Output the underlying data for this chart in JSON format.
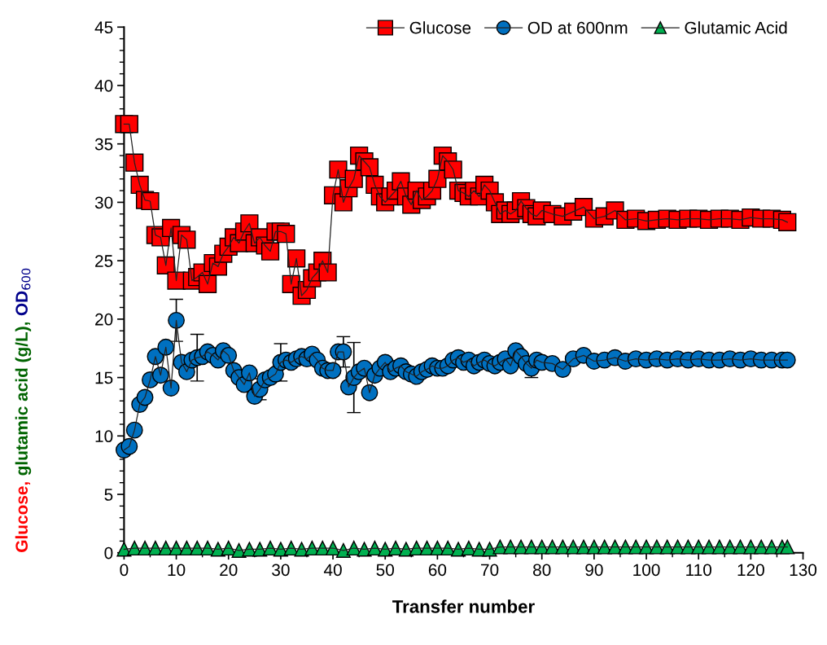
{
  "chart_data": {
    "type": "line",
    "xlabel": "Transfer number",
    "ylabel": "Glucose, glutamic acid (g/L), OD$_{600}$",
    "xlim": [
      0,
      130
    ],
    "xticks": [
      0,
      10,
      20,
      30,
      40,
      50,
      60,
      70,
      80,
      90,
      100,
      110,
      120,
      130
    ],
    "ylim": [
      0,
      45
    ],
    "yticks": [
      0,
      5,
      10,
      15,
      20,
      25,
      30,
      35,
      40,
      45
    ],
    "grid": false,
    "legend": "top right",
    "line_style": "solid",
    "series": [
      {
        "name": "Glucose",
        "color": "#ff0000",
        "marker": "square",
        "x": [
          0,
          1,
          2,
          3,
          4,
          5,
          6,
          7,
          8,
          9,
          10,
          11,
          12,
          13,
          14,
          15,
          16,
          17,
          18,
          19,
          20,
          21,
          22,
          23,
          24,
          25,
          26,
          27,
          28,
          29,
          30,
          31,
          32,
          33,
          34,
          35,
          36,
          37,
          38,
          39,
          40,
          41,
          42,
          43,
          44,
          45,
          46,
          47,
          48,
          49,
          50,
          51,
          52,
          53,
          54,
          55,
          56,
          57,
          58,
          59,
          60,
          61,
          62,
          63,
          64,
          65,
          66,
          67,
          68,
          69,
          70,
          71,
          72,
          73,
          74,
          75,
          76,
          77,
          78,
          79,
          80,
          82,
          84,
          86,
          88,
          90,
          92,
          94,
          96,
          98,
          100,
          102,
          104,
          106,
          108,
          110,
          112,
          114,
          116,
          118,
          120,
          122,
          124,
          126,
          127
        ],
        "values": [
          36.7,
          36.7,
          33.4,
          31.5,
          30.2,
          30.1,
          27.2,
          27.0,
          24.6,
          27.8,
          23.3,
          27.2,
          26.8,
          23.3,
          23.6,
          24.0,
          23.0,
          24.8,
          24.5,
          25.6,
          26.2,
          27.0,
          26.5,
          27.5,
          28.2,
          26.5,
          27.0,
          26.3,
          25.8,
          27.5,
          27.5,
          27.3,
          23.0,
          25.2,
          22.0,
          22.5,
          23.5,
          24.0,
          25.0,
          24.0,
          30.6,
          32.8,
          30.0,
          31.2,
          32.0,
          34.0,
          33.5,
          33.0,
          31.5,
          30.5,
          30.0,
          30.5,
          31.0,
          31.8,
          30.5,
          29.8,
          31.0,
          30.2,
          30.5,
          31.0,
          32.0,
          34.0,
          33.5,
          32.8,
          31.0,
          30.8,
          30.5,
          31.0,
          30.5,
          31.5,
          31.0,
          30.0,
          29.0,
          29.3,
          29.0,
          29.3,
          30.1,
          29.5,
          29.0,
          28.8,
          29.3,
          29.0,
          28.8,
          29.2,
          29.6,
          28.6,
          28.8,
          29.3,
          28.5,
          28.6,
          28.4,
          28.5,
          28.6,
          28.5,
          28.6,
          28.6,
          28.5,
          28.6,
          28.6,
          28.5,
          28.7,
          28.6,
          28.6,
          28.5,
          28.3
        ]
      },
      {
        "name": "OD at 600nm",
        "color": "#0070c0",
        "marker": "circle",
        "x": [
          0,
          1,
          2,
          3,
          4,
          5,
          6,
          7,
          8,
          9,
          10,
          11,
          12,
          13,
          14,
          15,
          16,
          17,
          18,
          19,
          20,
          21,
          22,
          23,
          24,
          25,
          26,
          27,
          28,
          29,
          30,
          31,
          32,
          33,
          34,
          35,
          36,
          37,
          38,
          39,
          40,
          41,
          42,
          43,
          44,
          45,
          46,
          47,
          48,
          49,
          50,
          51,
          52,
          53,
          54,
          55,
          56,
          57,
          58,
          59,
          60,
          61,
          62,
          63,
          64,
          65,
          66,
          67,
          68,
          69,
          70,
          71,
          72,
          73,
          74,
          75,
          76,
          77,
          78,
          79,
          80,
          82,
          84,
          86,
          88,
          90,
          92,
          94,
          96,
          98,
          100,
          102,
          104,
          106,
          108,
          110,
          112,
          114,
          116,
          118,
          120,
          122,
          124,
          126,
          127
        ],
        "values": [
          8.8,
          9.1,
          10.5,
          12.7,
          13.3,
          14.8,
          16.8,
          15.2,
          17.6,
          14.1,
          19.9,
          16.3,
          15.5,
          16.5,
          16.7,
          16.8,
          17.2,
          16.9,
          16.5,
          17.3,
          16.9,
          15.6,
          15.0,
          14.4,
          15.4,
          13.4,
          14.0,
          14.8,
          15.0,
          15.3,
          16.3,
          16.5,
          16.3,
          16.6,
          16.8,
          16.6,
          17.0,
          16.5,
          15.8,
          15.6,
          15.6,
          17.2,
          17.2,
          14.2,
          15.0,
          15.5,
          15.8,
          13.7,
          15.2,
          15.8,
          16.3,
          15.5,
          15.8,
          16.0,
          15.5,
          15.3,
          15.1,
          15.5,
          15.7,
          16.0,
          15.8,
          15.8,
          16.0,
          16.5,
          16.7,
          16.3,
          16.5,
          16.0,
          16.3,
          16.5,
          16.2,
          16.0,
          16.3,
          16.6,
          16.0,
          17.3,
          16.8,
          16.2,
          15.8,
          16.5,
          16.3,
          16.2,
          15.7,
          16.6,
          16.9,
          16.4,
          16.5,
          16.7,
          16.4,
          16.6,
          16.5,
          16.6,
          16.5,
          16.6,
          16.5,
          16.6,
          16.5,
          16.5,
          16.6,
          16.5,
          16.6,
          16.5,
          16.5,
          16.5,
          16.5
        ],
        "errors": [
          null,
          null,
          null,
          null,
          null,
          null,
          null,
          null,
          null,
          null,
          1.8,
          null,
          null,
          null,
          2.0,
          null,
          null,
          null,
          null,
          null,
          null,
          null,
          null,
          null,
          null,
          null,
          0.9,
          null,
          null,
          null,
          1.6,
          null,
          null,
          null,
          null,
          null,
          null,
          null,
          null,
          null,
          null,
          null,
          1.3,
          null,
          3.0,
          null,
          null,
          null,
          null,
          null,
          null,
          null,
          null,
          null,
          null,
          null,
          null,
          null,
          null,
          null,
          null,
          null,
          null,
          null,
          null,
          null,
          null,
          null,
          null,
          null,
          null,
          null,
          null,
          null,
          null,
          null,
          null,
          null,
          0.8,
          null,
          null,
          null,
          null,
          null,
          null,
          null,
          null,
          null,
          null,
          null,
          null,
          null,
          null,
          null,
          null,
          null,
          null,
          null,
          null,
          null,
          null,
          null,
          null,
          null,
          null
        ]
      },
      {
        "name": "Glutamic Acid",
        "color": "#00b050",
        "marker": "triangle",
        "x": [
          0,
          2,
          4,
          6,
          8,
          10,
          12,
          14,
          16,
          18,
          20,
          22,
          24,
          26,
          28,
          30,
          32,
          34,
          36,
          38,
          40,
          42,
          44,
          46,
          48,
          50,
          52,
          54,
          56,
          58,
          60,
          62,
          64,
          66,
          68,
          70,
          72,
          74,
          76,
          78,
          80,
          82,
          84,
          86,
          88,
          90,
          92,
          94,
          96,
          98,
          100,
          102,
          104,
          106,
          108,
          110,
          112,
          114,
          116,
          118,
          120,
          122,
          124,
          126,
          127
        ],
        "values": [
          0.3,
          0.4,
          0.4,
          0.4,
          0.4,
          0.4,
          0.4,
          0.4,
          0.4,
          0.3,
          0.4,
          0.2,
          0.3,
          0.3,
          0.4,
          0.3,
          0.4,
          0.3,
          0.4,
          0.4,
          0.4,
          0.2,
          0.4,
          0.3,
          0.4,
          0.3,
          0.4,
          0.3,
          0.4,
          0.4,
          0.4,
          0.4,
          0.3,
          0.4,
          0.3,
          0.3,
          0.5,
          0.5,
          0.5,
          0.5,
          0.5,
          0.5,
          0.5,
          0.5,
          0.5,
          0.5,
          0.5,
          0.5,
          0.5,
          0.5,
          0.5,
          0.5,
          0.5,
          0.5,
          0.5,
          0.5,
          0.5,
          0.5,
          0.5,
          0.5,
          0.5,
          0.5,
          0.5,
          0.5,
          0.5
        ]
      }
    ]
  }
}
